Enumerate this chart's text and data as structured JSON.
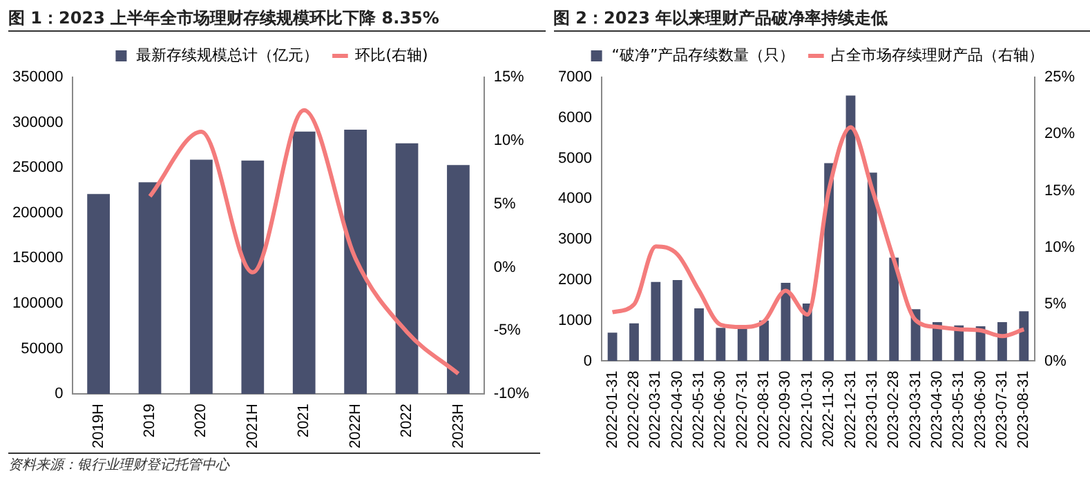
{
  "chart_data": [
    {
      "type": "bar",
      "title": "图 1：2023 上半年全市场理财存续规模环比下降 8.35%",
      "categories": [
        "2019H",
        "2019",
        "2020",
        "2021H",
        "2021",
        "2022H",
        "2022",
        "2023H"
      ],
      "series": [
        {
          "name": "最新存续规模总计（亿元）",
          "color": "#48506e",
          "values": [
            221000,
            234000,
            259000,
            258000,
            290000,
            292000,
            277000,
            253000
          ]
        },
        {
          "name": "环比(右轴)",
          "type": "line",
          "axis": "y2",
          "color": "#f47c7c",
          "values": [
            null,
            5.6,
            10.7,
            -0.4,
            12.4,
            0.7,
            -5.1,
            -8.4
          ]
        }
      ],
      "ylim": [
        0,
        350000
      ],
      "yticks": [
        0,
        50000,
        100000,
        150000,
        200000,
        250000,
        300000,
        350000
      ],
      "y2lim": [
        -10,
        15
      ],
      "y2ticks": [
        {
          "value": -10,
          "label": "-10%"
        },
        {
          "value": -5,
          "label": "-5%"
        },
        {
          "value": 0,
          "label": "0%"
        },
        {
          "value": 5,
          "label": "5%"
        },
        {
          "value": 10,
          "label": "10%"
        },
        {
          "value": 15,
          "label": "15%"
        }
      ],
      "grid": false,
      "legend": "top",
      "marker": "none",
      "annotations": [
        "资料来源：银行业理财登记托管中心"
      ]
    },
    {
      "type": "bar",
      "title": "图 2：2023 年以来理财产品破净率持续走低",
      "categories": [
        "2022-01-31",
        "2022-02-28",
        "2022-03-31",
        "2022-04-30",
        "2022-05-31",
        "2022-06-30",
        "2022-07-31",
        "2022-08-31",
        "2022-09-30",
        "2022-10-31",
        "2022-11-30",
        "2022-12-31",
        "2023-01-31",
        "2023-02-28",
        "2023-03-31",
        "2023-04-30",
        "2023-05-31",
        "2023-06-30",
        "2023-07-31",
        "2023-08-31"
      ],
      "series": [
        {
          "name": "“破净”产品存续数量（只）",
          "color": "#48506e",
          "values": [
            700,
            930,
            1950,
            2000,
            1300,
            820,
            800,
            1000,
            1930,
            1420,
            4880,
            6550,
            4650,
            2550,
            1280,
            960,
            880,
            860,
            960,
            1230
          ]
        },
        {
          "name": "占全市场存续理财产品（右轴）",
          "type": "line",
          "axis": "y2",
          "color": "#f47c7c",
          "values": [
            4.3,
            5.0,
            10.1,
            9.4,
            6.2,
            3.2,
            3.0,
            3.5,
            6.2,
            4.1,
            15.1,
            20.6,
            15.1,
            8.9,
            3.6,
            3.0,
            2.8,
            2.7,
            2.2,
            2.8
          ]
        }
      ],
      "ylim": [
        0,
        7000
      ],
      "yticks": [
        0,
        1000,
        2000,
        3000,
        4000,
        5000,
        6000,
        7000
      ],
      "y2lim": [
        0,
        25
      ],
      "y2ticks": [
        {
          "value": 0,
          "label": "0%"
        },
        {
          "value": 5,
          "label": "5%"
        },
        {
          "value": 10,
          "label": "10%"
        },
        {
          "value": 15,
          "label": "15%"
        },
        {
          "value": 20,
          "label": "20%"
        },
        {
          "value": 25,
          "label": "25%"
        }
      ],
      "grid": false,
      "legend": "top",
      "marker": "none"
    }
  ]
}
